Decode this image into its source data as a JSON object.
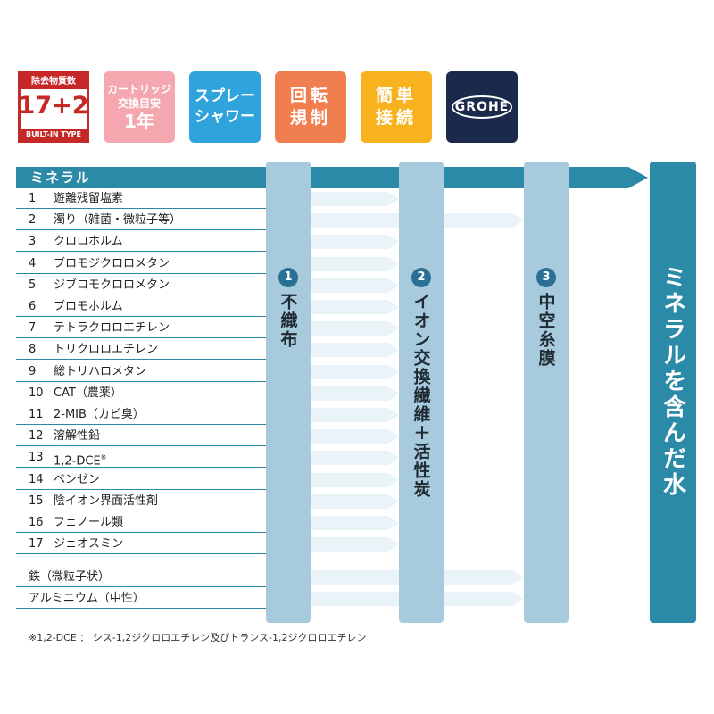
{
  "badges": {
    "impurities": {
      "top": "除去物質数",
      "count": "17+2",
      "bottom": "BUILT-IN TYPE"
    },
    "cartridge": {
      "line1": "カートリッジ",
      "line2": "交換目安",
      "line3": "1年"
    },
    "spray": {
      "line1": "スプレー",
      "line2": "シャワー"
    },
    "rotation": {
      "line1": "回転",
      "line2": "規制"
    },
    "easy": {
      "line1": "簡単",
      "line2": "接続"
    },
    "brand": {
      "name": "GROHE"
    }
  },
  "diagram": {
    "header": "ミネラル",
    "substances": [
      {
        "num": "1",
        "name": "遊離残留塩素"
      },
      {
        "num": "2",
        "name": "濁り（雑菌・微粒子等）"
      },
      {
        "num": "3",
        "name": "クロロホルム"
      },
      {
        "num": "4",
        "name": "ブロモジクロロメタン"
      },
      {
        "num": "5",
        "name": "ジブロモクロロメタン"
      },
      {
        "num": "6",
        "name": "ブロモホルム"
      },
      {
        "num": "7",
        "name": "テトラクロロエチレン"
      },
      {
        "num": "8",
        "name": "トリクロロエチレン"
      },
      {
        "num": "9",
        "name": "総トリハロメタン"
      },
      {
        "num": "10",
        "name": "CAT（農薬）"
      },
      {
        "num": "11",
        "name": "2-MIB（カビ臭）"
      },
      {
        "num": "12",
        "name": "溶解性鉛"
      },
      {
        "num": "13",
        "name": "1,2-DCE",
        "mark": "※"
      },
      {
        "num": "14",
        "name": "ベンゼン"
      },
      {
        "num": "15",
        "name": "陰イオン界面活性剤"
      },
      {
        "num": "16",
        "name": "フェノール類"
      },
      {
        "num": "17",
        "name": "ジェオスミン"
      }
    ],
    "extra": [
      {
        "name": "鉄（微粒子状）"
      },
      {
        "name": "アルミニウム（中性）"
      }
    ],
    "stages": [
      {
        "num": "1",
        "label": "不織布"
      },
      {
        "num": "2",
        "label": "イオン交換繊維＋活性炭"
      },
      {
        "num": "3",
        "label": "中空糸膜"
      }
    ],
    "result": "ミネラルを含んだ水"
  },
  "footnote": "※1,2-DCE ： シス-1,2ジクロロエチレン及びトランス-1,2ジクロロエチレン",
  "colors": {
    "accent": "#2a8aa8",
    "column": "#a7cbdc",
    "arrow": "#eaf4f8"
  }
}
